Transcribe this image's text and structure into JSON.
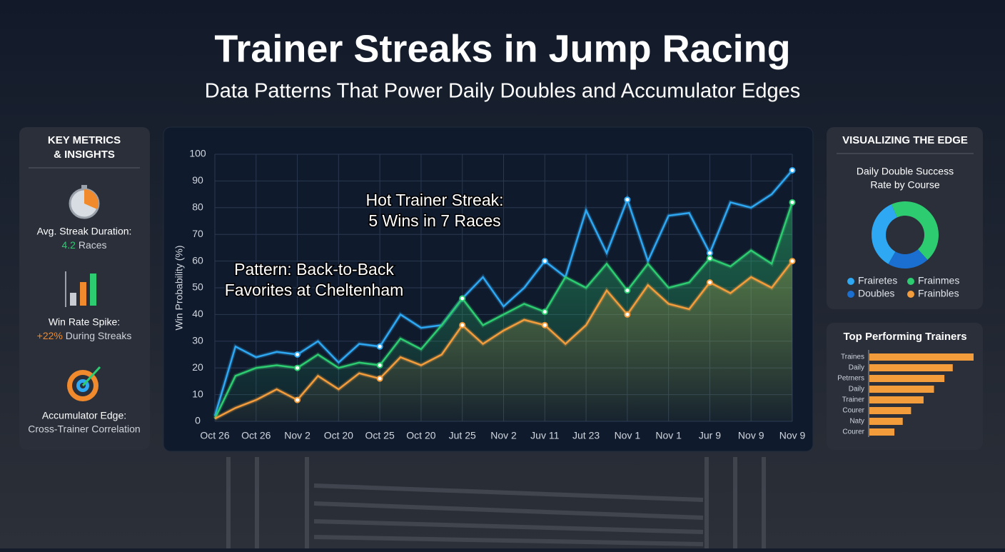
{
  "header": {
    "title": "Trainer Streaks in Jump Racing",
    "subtitle": "Data Patterns That Power Daily Doubles and Accumulator Edges"
  },
  "left_panel": {
    "title": [
      "KEY METRICS",
      "& INSIGHTS"
    ],
    "metrics": [
      {
        "label": "Avg. Streak Duration:",
        "value": "4.2",
        "detail": "Races"
      },
      {
        "label": "Win Rate Spike:",
        "value": "+22%",
        "detail": "During Streaks"
      },
      {
        "label": "Accumulator Edge:",
        "detail": "Cross-Trainer Correlation"
      }
    ]
  },
  "right_panel": {
    "title": "VISUALIZING THE EDGE"
  },
  "chart_data": [
    {
      "type": "line",
      "y_label": "Win Probability (%)",
      "annotations": [
        [
          "Hot Trainer Streak:",
          "5 Wins in 7 Races"
        ],
        [
          "Pattern: Back-to-Back",
          "Favorites at Cheltenham"
        ]
      ],
      "categories": [
        "Oct 26",
        null,
        "Oct 26",
        null,
        "Nov 2",
        null,
        "Oct 20",
        null,
        "Oct 25",
        null,
        "Oct 20",
        null,
        "Jut 25",
        null,
        "Nov 2",
        null,
        "Juv 11",
        null,
        "Jut 23",
        null,
        "Nov 1",
        null,
        "Nov 1",
        null,
        "Jur 9",
        null,
        "Nov 9",
        null,
        "Nov 9"
      ],
      "series": [
        {
          "color": "#2ea8f2",
          "values": [
            2,
            28,
            24,
            26,
            25,
            30,
            22,
            29,
            28,
            40,
            35,
            36,
            46,
            54,
            43,
            50,
            60,
            54,
            79,
            63,
            83,
            60,
            77,
            78,
            63,
            82,
            80,
            85,
            94
          ]
        },
        {
          "color": "#2ecc71",
          "values": [
            1,
            17,
            20,
            21,
            20,
            25,
            20,
            22,
            21,
            31,
            27,
            36,
            46,
            36,
            40,
            44,
            41,
            54,
            50,
            59,
            49,
            59,
            50,
            52,
            61,
            58,
            64,
            59,
            82
          ]
        },
        {
          "color": "#f39c3c",
          "values": [
            1,
            5,
            8,
            12,
            8,
            17,
            12,
            18,
            16,
            24,
            21,
            25,
            36,
            29,
            34,
            38,
            36,
            29,
            36,
            49,
            40,
            51,
            44,
            42,
            52,
            48,
            54,
            50,
            60
          ]
        }
      ],
      "ylim": [
        0,
        100
      ],
      "yticks": [
        0,
        10,
        20,
        30,
        40,
        50,
        60,
        70,
        80,
        90,
        100
      ],
      "grid": true
    },
    {
      "type": "pie",
      "title": [
        "Daily Double Success",
        "Rate by Course"
      ],
      "categories": [
        "Frairetes",
        "Frainmes",
        "Doubles",
        "Frainbles"
      ],
      "values": [
        35,
        45,
        20,
        0
      ],
      "colors": [
        "#2ea8f2",
        "#2ecc71",
        "#1a6fd0",
        "#f39c3c"
      ]
    },
    {
      "type": "hbar",
      "title": "Top Performing Trainers",
      "categories": [
        "Traines",
        "Daily",
        "Petrners",
        "Daily",
        "Trainer",
        "Courer",
        "Naty",
        "Courer"
      ],
      "values": [
        100,
        80,
        72,
        62,
        52,
        40,
        32,
        24
      ],
      "color": "#f39c3c"
    }
  ]
}
